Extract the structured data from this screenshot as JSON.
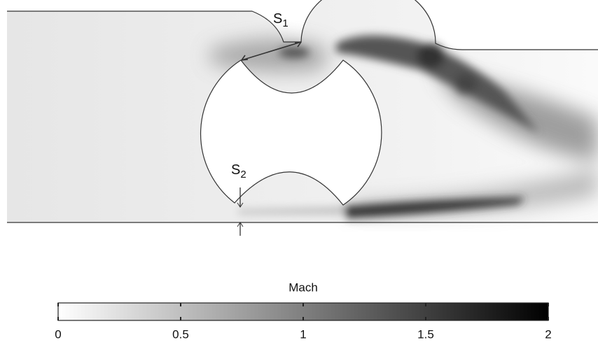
{
  "figure": {
    "labels": [
      {
        "base": "S",
        "sub": "1"
      },
      {
        "base": "S",
        "sub": "2"
      }
    ],
    "colorbar": {
      "title": "Mach",
      "lim": [
        0,
        2
      ],
      "ticks": [
        0,
        0.5,
        1,
        1.5,
        2
      ]
    }
  }
}
